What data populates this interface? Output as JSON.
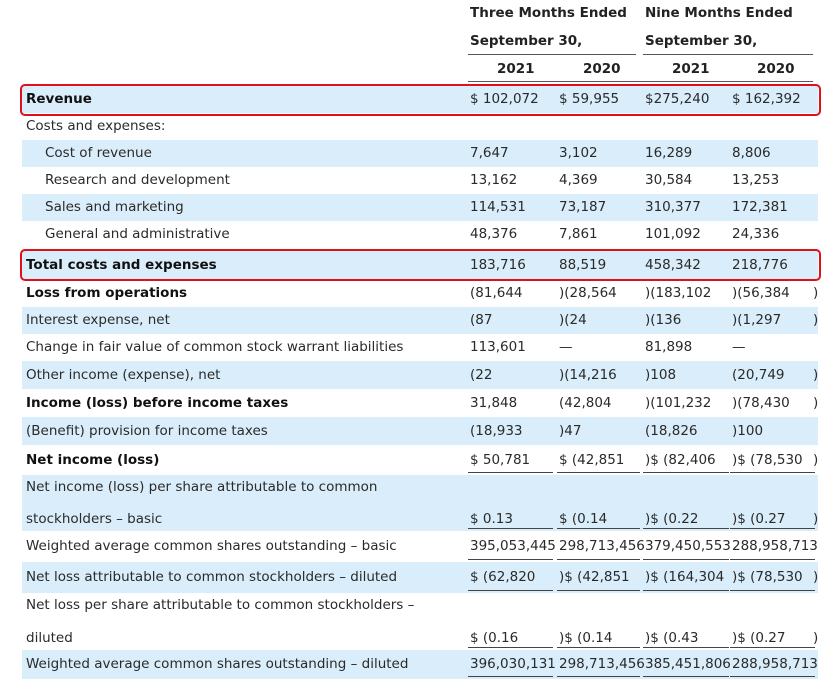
{
  "header": {
    "group1_line1": "Three Months Ended",
    "group1_line2": "September 30,",
    "group2_line1": "Nine Months Ended",
    "group2_line2": "September 30,",
    "years": [
      "2021",
      "2020",
      "2021",
      "2020"
    ]
  },
  "colors": {
    "shade": "#d9eefa",
    "highlight": "#e0101a"
  },
  "rows": [
    {
      "label": "Revenue",
      "c": [
        "$ 102,072",
        "$ 59,955",
        "$275,240",
        "$ 162,392"
      ]
    },
    {
      "label": "Costs and expenses:",
      "c": [
        "",
        "",
        "",
        ""
      ]
    },
    {
      "label": "Cost of revenue",
      "c": [
        "7,647",
        "3,102",
        "16,289",
        "8,806"
      ]
    },
    {
      "label": "Research and development",
      "c": [
        "13,162",
        "4,369",
        "30,584",
        "13,253"
      ]
    },
    {
      "label": "Sales and marketing",
      "c": [
        "114,531",
        "73,187",
        "310,377",
        "172,381"
      ]
    },
    {
      "label": "General and administrative",
      "c": [
        "48,376",
        "7,861",
        "101,092",
        "24,336"
      ]
    },
    {
      "label": "Total costs and expenses",
      "c": [
        "183,716",
        "88,519",
        "458,342",
        "218,776"
      ]
    },
    {
      "label": "Loss from operations",
      "c": [
        "(81,644",
        ")(28,564",
        ")(183,102",
        ")(56,384",
        ")"
      ]
    },
    {
      "label": "Interest expense, net",
      "c": [
        "(87",
        ")(24",
        ")(136",
        ")(1,297",
        ")"
      ]
    },
    {
      "label": "Change in fair value of common stock warrant liabilities",
      "c": [
        "113,601",
        "—",
        "81,898",
        "—"
      ]
    },
    {
      "label": "Other income (expense), net",
      "c": [
        "(22",
        ")(14,216",
        ")108",
        "(20,749",
        ")"
      ]
    },
    {
      "label": "Income (loss) before income taxes",
      "c": [
        "31,848",
        "(42,804",
        ")(101,232",
        ")(78,430",
        ")"
      ]
    },
    {
      "label": "(Benefit) provision for income taxes",
      "c": [
        "(18,933",
        ")47",
        "(18,826",
        ")100"
      ]
    },
    {
      "label": "Net income (loss)",
      "c": [
        "$ 50,781",
        "$ (42,851",
        ")$ (82,406",
        ")$ (78,530",
        ")"
      ]
    },
    {
      "label": "Net income (loss) per share attributable to common",
      "label2": "stockholders – basic",
      "c": [
        "$ 0.13",
        "$ (0.14",
        ")$ (0.22",
        ")$ (0.27",
        ")"
      ]
    },
    {
      "label": "Weighted average common shares outstanding – basic",
      "c": [
        "395,053,445",
        "298,713,456",
        "379,450,553",
        "288,958,713"
      ]
    },
    {
      "label": "Net loss attributable to common stockholders – diluted",
      "c": [
        "$ (62,820",
        ")$ (42,851",
        ")$ (164,304",
        ")$ (78,530",
        ")"
      ]
    },
    {
      "label": "Net loss per share attributable to common stockholders –",
      "label2": "diluted",
      "c": [
        "$ (0.16",
        ")$ (0.14",
        ")$ (0.43",
        ")$ (0.27",
        ")"
      ]
    },
    {
      "label": "Weighted average common shares outstanding – diluted",
      "c": [
        "396,030,131",
        "298,713,456",
        "385,451,806",
        "288,958,713"
      ]
    }
  ]
}
